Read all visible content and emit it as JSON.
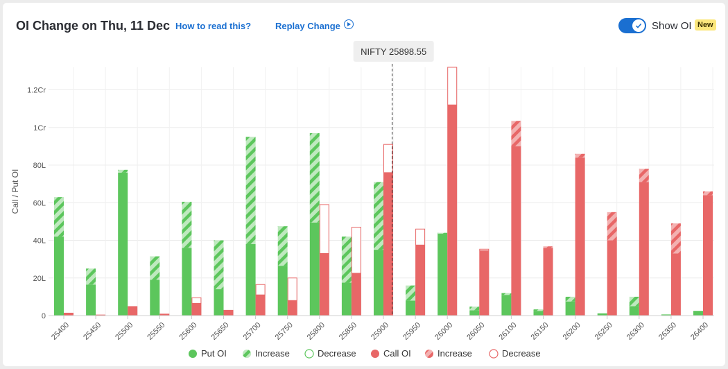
{
  "header": {
    "title": "OI Change on Thu, 11 Dec",
    "how_to_read": "How to read this?",
    "replay": "Replay Change",
    "toggle_label": "Show OI",
    "toggle_on": true,
    "new_badge": "New"
  },
  "chart_data": {
    "type": "bar",
    "ylabel": "Call / Put OI",
    "ylim": [
      0,
      13200000
    ],
    "y_ticks": [
      {
        "value": 0,
        "label": "0"
      },
      {
        "value": 2000000,
        "label": "20L"
      },
      {
        "value": 4000000,
        "label": "40L"
      },
      {
        "value": 6000000,
        "label": "60L"
      },
      {
        "value": 8000000,
        "label": "80L"
      },
      {
        "value": 10000000,
        "label": "1Cr"
      },
      {
        "value": 12000000,
        "label": "1.2Cr"
      }
    ],
    "categories": [
      "25400",
      "25450",
      "25500",
      "25550",
      "25600",
      "25650",
      "25700",
      "25750",
      "25800",
      "25850",
      "25900",
      "25950",
      "26000",
      "26050",
      "26100",
      "26150",
      "26200",
      "26250",
      "26300",
      "26350",
      "26400"
    ],
    "put_oi": [
      4200000,
      1650000,
      7600000,
      1900000,
      3600000,
      1400000,
      3800000,
      2650000,
      4950000,
      1750000,
      3500000,
      800000,
      4350000,
      280000,
      1100000,
      250000,
      750000,
      120000,
      500000,
      60000,
      250000
    ],
    "put_change": [
      2100000,
      850000,
      150000,
      1250000,
      2450000,
      2600000,
      5700000,
      2100000,
      4750000,
      2450000,
      3600000,
      800000,
      50000,
      200000,
      100000,
      80000,
      250000,
      0,
      500000,
      0,
      0
    ],
    "call_oi": [
      150000,
      50000,
      500000,
      100000,
      650000,
      300000,
      1100000,
      800000,
      3300000,
      2250000,
      7600000,
      3750000,
      11200000,
      3450000,
      9000000,
      3600000,
      8400000,
      4000000,
      7100000,
      3300000,
      6400000
    ],
    "call_change": [
      0,
      0,
      0,
      0,
      -300000,
      0,
      -550000,
      -1200000,
      -2600000,
      -2450000,
      -1500000,
      -850000,
      -2000000,
      -80000,
      1350000,
      80000,
      200000,
      1500000,
      700000,
      1600000,
      200000
    ],
    "spot": {
      "label": "NIFTY 25898.55",
      "value": 25898.55
    },
    "legend": [
      "Put OI",
      "Increase",
      "Decrease",
      "Call OI",
      "Increase",
      "Decrease"
    ],
    "colors": {
      "put": "#5cc65c",
      "put_light": "#bfe9bf",
      "call": "#e86767",
      "call_light": "#f3b1b1",
      "grid": "#ececec"
    }
  }
}
